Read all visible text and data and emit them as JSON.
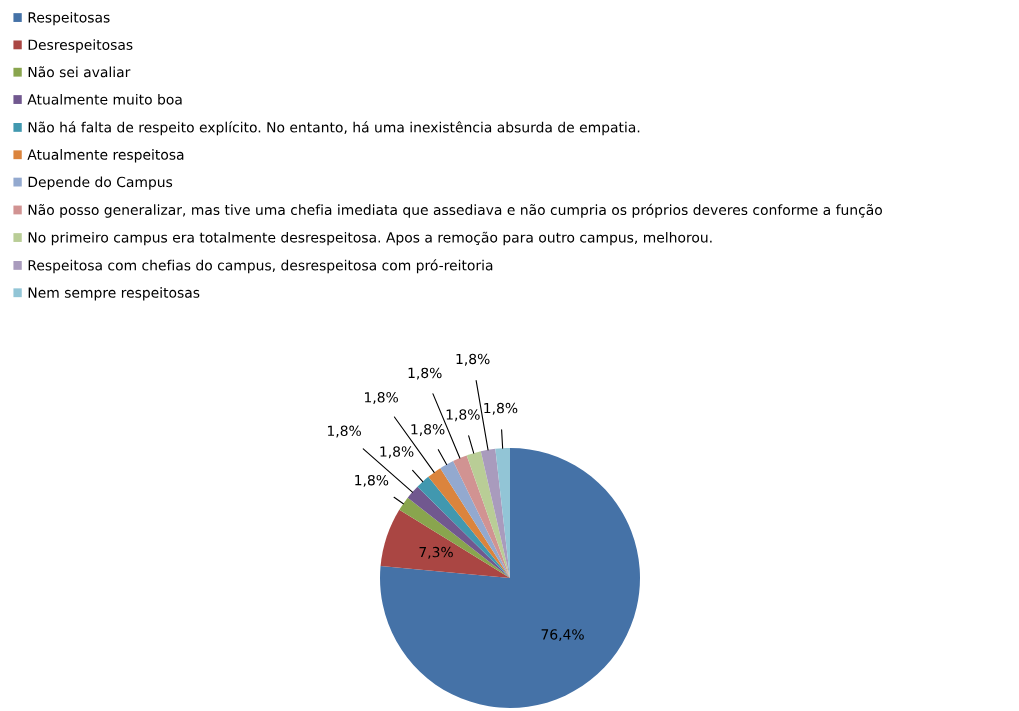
{
  "chart_data": {
    "type": "pie",
    "categories": [
      "Respeitosas",
      "Desrespeitosas",
      "Não sei avaliar",
      "Atualmente muito boa",
      "Não há falta de respeito explícito. No entanto, há uma inexistência absurda de empatia.",
      "Atualmente respeitosa",
      "Depende do Campus",
      "Não posso generalizar, mas tive uma chefia imediata que assediava e não cumpria os próprios deveres conforme a função",
      "No primeiro campus era totalmente desrespeitosa. Apos a remoção para outro campus, melhorou.",
      "Respeitosa com chefias do campus, desrespeitosa com pró-reitoria",
      "Nem sempre respeitosas"
    ],
    "values": [
      76.4,
      7.3,
      1.8,
      1.8,
      1.8,
      1.8,
      1.8,
      1.8,
      1.8,
      1.8,
      1.8
    ],
    "value_labels": [
      "76,4%",
      "7,3%",
      "1,8%",
      "1,8%",
      "1,8%",
      "1,8%",
      "1,8%",
      "1,8%",
      "1,8%",
      "1,8%",
      "1,8%"
    ],
    "colors": [
      "#4572a7",
      "#aa4643",
      "#89a54e",
      "#71588f",
      "#4198af",
      "#db843d",
      "#93a9cf",
      "#d19392",
      "#b9cd96",
      "#a99bbd",
      "#92c5d6"
    ],
    "legend": "top left"
  }
}
